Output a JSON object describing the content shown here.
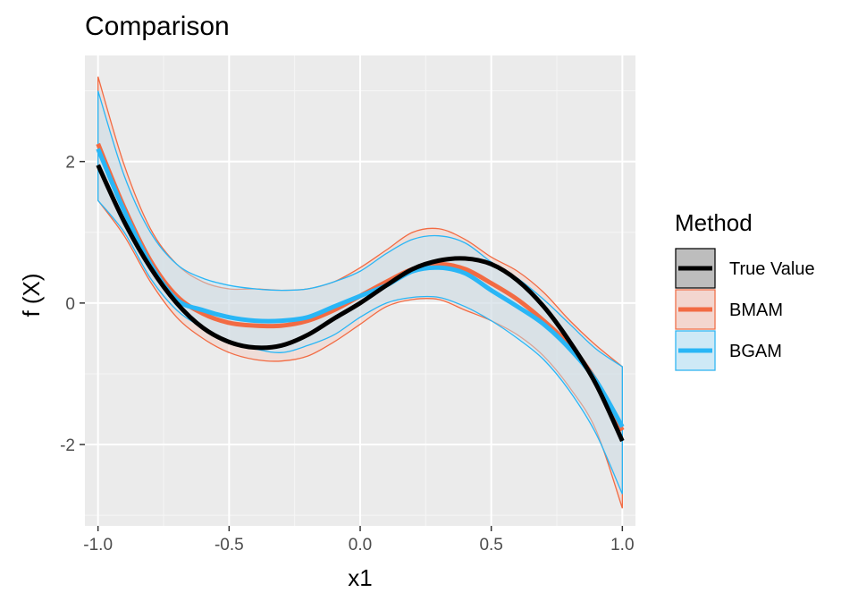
{
  "chart_data": {
    "type": "line",
    "title": "Comparison",
    "xlabel": "x1",
    "ylabel": "f (X)",
    "xlim": [
      -1.05,
      1.05
    ],
    "ylim": [
      -3.15,
      3.5
    ],
    "x_ticks": [
      -1.0,
      -0.5,
      0.0,
      0.5,
      1.0
    ],
    "x_tick_labels": [
      "-1.0",
      "-0.5",
      "0.0",
      "0.5",
      "1.0"
    ],
    "y_ticks": [
      -2,
      0,
      2
    ],
    "y_tick_labels": [
      "-2",
      "0",
      "2"
    ],
    "grid": true,
    "legend": {
      "title": "Method",
      "placement": "right",
      "entries": [
        {
          "label": "True Value",
          "color": "#000000",
          "fill": "#bdbdbd"
        },
        {
          "label": "BMAM",
          "color": "#f26b43",
          "fill": "#f4cbc1"
        },
        {
          "label": "BGAM",
          "color": "#29b6f6",
          "fill": "#bfe6f8"
        }
      ]
    },
    "x": [
      -1.0,
      -0.9,
      -0.8,
      -0.7,
      -0.6,
      -0.5,
      -0.4,
      -0.3,
      -0.2,
      -0.1,
      0.0,
      0.1,
      0.2,
      0.3,
      0.4,
      0.5,
      0.6,
      0.7,
      0.8,
      0.9,
      1.0
    ],
    "series": [
      {
        "name": "True Value",
        "color": "#000000",
        "values": [
          1.95,
          1.15,
          0.5,
          0.0,
          -0.35,
          -0.55,
          -0.63,
          -0.6,
          -0.45,
          -0.22,
          0.0,
          0.25,
          0.48,
          0.6,
          0.63,
          0.55,
          0.32,
          -0.05,
          -0.55,
          -1.15,
          -1.95
        ]
      },
      {
        "name": "BMAM",
        "color": "#f26b43",
        "fill": "#f4cbc1",
        "values": [
          2.25,
          1.35,
          0.6,
          0.1,
          -0.15,
          -0.28,
          -0.32,
          -0.32,
          -0.25,
          -0.1,
          0.1,
          0.3,
          0.48,
          0.55,
          0.48,
          0.28,
          0.05,
          -0.25,
          -0.6,
          -1.1,
          -1.8
        ],
        "lower": [
          1.45,
          0.95,
          0.3,
          -0.2,
          -0.5,
          -0.7,
          -0.8,
          -0.82,
          -0.75,
          -0.55,
          -0.3,
          -0.05,
          0.05,
          0.05,
          -0.1,
          -0.25,
          -0.45,
          -0.75,
          -1.2,
          -1.8,
          -2.9
        ],
        "upper": [
          3.2,
          1.95,
          1.05,
          0.55,
          0.3,
          0.2,
          0.2,
          0.18,
          0.2,
          0.3,
          0.5,
          0.75,
          1.0,
          1.05,
          0.9,
          0.65,
          0.45,
          0.15,
          -0.25,
          -0.6,
          -0.9
        ]
      },
      {
        "name": "BGAM",
        "color": "#29b6f6",
        "fill": "#bfe6f8",
        "values": [
          2.18,
          1.3,
          0.55,
          0.05,
          -0.1,
          -0.2,
          -0.25,
          -0.25,
          -0.2,
          -0.05,
          0.1,
          0.25,
          0.45,
          0.5,
          0.42,
          0.18,
          -0.05,
          -0.3,
          -0.65,
          -1.1,
          -1.75
        ],
        "lower": [
          1.45,
          1.0,
          0.35,
          -0.1,
          -0.35,
          -0.55,
          -0.65,
          -0.7,
          -0.6,
          -0.45,
          -0.2,
          0.0,
          0.08,
          0.08,
          -0.05,
          -0.25,
          -0.5,
          -0.8,
          -1.25,
          -1.85,
          -2.7
        ],
        "upper": [
          3.0,
          1.8,
          1.0,
          0.55,
          0.35,
          0.25,
          0.2,
          0.18,
          0.2,
          0.3,
          0.45,
          0.7,
          0.9,
          0.95,
          0.85,
          0.58,
          0.35,
          0.05,
          -0.3,
          -0.65,
          -0.9
        ]
      }
    ]
  }
}
